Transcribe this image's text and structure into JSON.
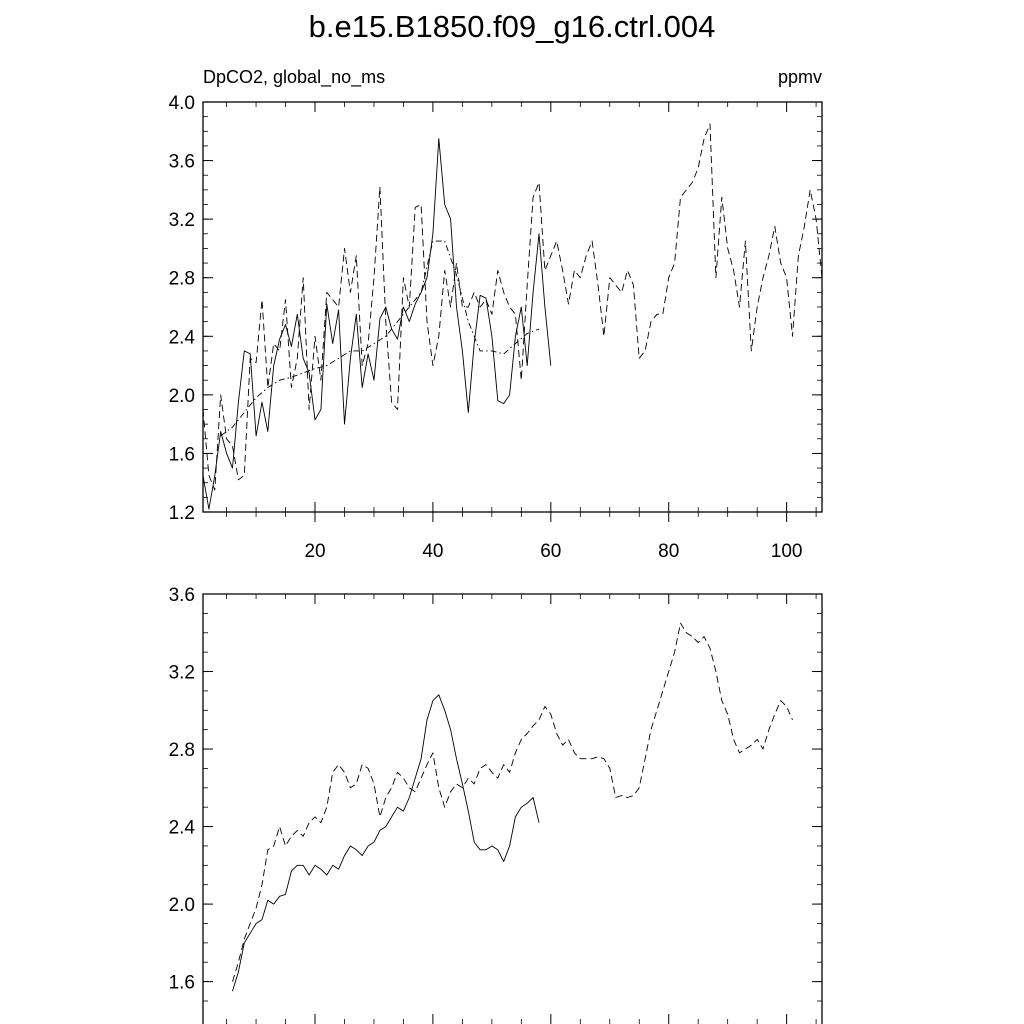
{
  "title": "b.e15.B1850.f09_g16.ctrl.004",
  "chart_data": [
    {
      "type": "line",
      "left_label": "DpCO2, global_no_ms",
      "right_label": "ppmv",
      "xlim": [
        1,
        106
      ],
      "ylim": [
        1.2,
        4.0
      ],
      "xticks": [
        20,
        40,
        60,
        80,
        100
      ],
      "yticks": [
        1.2,
        1.6,
        2.0,
        2.4,
        2.8,
        3.2,
        3.6,
        4.0
      ],
      "ytick_labels": [
        "1.2",
        "1.6",
        "2.0",
        "2.4",
        "2.8",
        "3.2",
        "3.6",
        "4.0"
      ],
      "grid": false,
      "series": [
        {
          "style": "solid",
          "color": "#000000",
          "x": [
            1,
            2,
            3,
            4,
            5,
            6,
            7,
            8,
            9,
            10,
            11,
            12,
            13,
            14,
            15,
            16,
            17,
            18,
            19,
            20,
            21,
            22,
            23,
            24,
            25,
            26,
            27,
            28,
            29,
            30,
            31,
            32,
            33,
            34,
            35,
            36,
            37,
            38,
            39,
            40,
            41,
            42,
            43,
            44,
            45,
            46,
            47,
            48,
            49,
            50,
            51,
            52,
            53,
            54,
            55,
            56,
            57,
            58,
            59,
            60
          ],
          "y": [
            1.45,
            1.22,
            1.45,
            1.75,
            1.6,
            1.5,
            1.95,
            2.3,
            2.28,
            1.72,
            1.95,
            1.75,
            2.2,
            2.38,
            2.48,
            2.33,
            2.55,
            2.25,
            2.15,
            1.83,
            1.9,
            2.62,
            2.35,
            2.58,
            1.8,
            2.25,
            2.55,
            2.05,
            2.28,
            2.1,
            2.52,
            2.6,
            2.45,
            2.38,
            2.6,
            2.5,
            2.62,
            2.7,
            2.8,
            3.1,
            3.75,
            3.3,
            3.2,
            2.6,
            2.3,
            1.88,
            2.35,
            2.68,
            2.66,
            2.4,
            1.96,
            1.94,
            2.0,
            2.4,
            2.6,
            2.2,
            2.7,
            3.1,
            2.6,
            2.2
          ]
        },
        {
          "style": "dashed",
          "color": "#000000",
          "x": [
            1,
            2,
            3,
            4,
            5,
            6,
            7,
            8,
            9,
            10,
            11,
            12,
            13,
            14,
            15,
            16,
            17,
            18,
            19,
            20,
            21,
            22,
            23,
            24,
            25,
            26,
            27,
            28,
            29,
            30,
            31,
            32,
            33,
            34,
            35,
            36,
            37,
            38,
            39,
            40,
            41,
            42,
            43,
            44,
            45,
            46,
            47,
            48,
            49,
            50,
            51,
            52,
            53,
            54,
            55,
            56,
            57,
            58,
            59,
            60,
            61,
            62,
            63,
            64,
            65,
            66,
            67,
            68,
            69,
            70,
            71,
            72,
            73,
            74,
            75,
            76,
            77,
            78,
            79,
            80,
            81,
            82,
            83,
            84,
            85,
            86,
            87,
            88,
            89,
            90,
            91,
            92,
            93,
            94,
            95,
            96,
            97,
            98,
            99,
            100,
            101,
            102,
            103,
            104,
            105,
            106
          ],
          "y": [
            1.9,
            1.45,
            1.35,
            2.0,
            1.7,
            1.65,
            1.42,
            1.45,
            2.25,
            2.22,
            2.65,
            2.05,
            2.35,
            2.3,
            2.65,
            2.05,
            2.25,
            2.8,
            1.9,
            2.4,
            2.1,
            2.7,
            2.65,
            2.6,
            3.0,
            2.7,
            2.95,
            2.2,
            2.35,
            2.8,
            3.42,
            2.5,
            1.95,
            1.9,
            2.8,
            2.6,
            3.28,
            3.3,
            2.5,
            2.2,
            2.4,
            2.85,
            2.6,
            2.9,
            2.6,
            2.6,
            2.7,
            2.6,
            2.65,
            2.55,
            2.85,
            2.7,
            2.6,
            2.55,
            2.1,
            2.75,
            3.35,
            3.45,
            2.85,
            2.95,
            3.05,
            2.85,
            2.62,
            2.85,
            2.8,
            2.95,
            3.05,
            2.75,
            2.4,
            2.8,
            2.75,
            2.7,
            2.85,
            2.75,
            2.25,
            2.3,
            2.5,
            2.55,
            2.55,
            2.8,
            2.9,
            3.35,
            3.4,
            3.45,
            3.55,
            3.75,
            3.85,
            2.8,
            3.35,
            3.0,
            2.85,
            2.6,
            3.05,
            2.3,
            2.6,
            2.8,
            2.95,
            3.15,
            2.9,
            2.8,
            2.4,
            2.95,
            3.15,
            3.4,
            3.2,
            2.8
          ]
        },
        {
          "style": "dash-dot",
          "color": "#000000",
          "x": [
            4,
            6,
            8,
            10,
            12,
            14,
            16,
            18,
            20,
            22,
            24,
            26,
            28,
            30,
            32,
            34,
            36,
            38,
            40,
            42,
            44,
            46,
            48,
            50,
            52,
            54,
            56,
            58
          ],
          "y": [
            1.72,
            1.78,
            1.88,
            1.98,
            2.05,
            2.1,
            2.12,
            2.15,
            2.18,
            2.2,
            2.25,
            2.3,
            2.3,
            2.35,
            2.4,
            2.5,
            2.6,
            2.7,
            3.05,
            3.05,
            2.82,
            2.5,
            2.3,
            2.3,
            2.28,
            2.35,
            2.42,
            2.45
          ]
        }
      ]
    },
    {
      "type": "line",
      "xlim": [
        1,
        106
      ],
      "ylim": [
        1.5,
        3.6
      ],
      "yticks": [
        1.6,
        2.0,
        2.4,
        2.8,
        3.2,
        3.6
      ],
      "ytick_labels": [
        "1.6",
        "2.0",
        "2.4",
        "2.8",
        "3.2",
        "3.6"
      ],
      "grid": false,
      "series": [
        {
          "style": "solid",
          "color": "#000000",
          "x": [
            6,
            7,
            8,
            9,
            10,
            11,
            12,
            13,
            14,
            15,
            16,
            17,
            18,
            19,
            20,
            21,
            22,
            23,
            24,
            25,
            26,
            27,
            28,
            29,
            30,
            31,
            32,
            33,
            34,
            35,
            36,
            37,
            38,
            39,
            40,
            41,
            42,
            43,
            44,
            45,
            46,
            47,
            48,
            49,
            50,
            51,
            52,
            53,
            54,
            55,
            56,
            57,
            58
          ],
          "y": [
            1.55,
            1.65,
            1.8,
            1.85,
            1.9,
            1.92,
            2.02,
            2.0,
            2.04,
            2.05,
            2.17,
            2.2,
            2.2,
            2.15,
            2.2,
            2.18,
            2.15,
            2.2,
            2.18,
            2.25,
            2.3,
            2.28,
            2.25,
            2.3,
            2.32,
            2.38,
            2.4,
            2.45,
            2.5,
            2.48,
            2.55,
            2.65,
            2.75,
            2.95,
            3.05,
            3.08,
            3.0,
            2.9,
            2.75,
            2.62,
            2.48,
            2.32,
            2.28,
            2.28,
            2.3,
            2.28,
            2.22,
            2.3,
            2.45,
            2.5,
            2.52,
            2.55,
            2.42
          ]
        },
        {
          "style": "dashed",
          "color": "#000000",
          "x": [
            6,
            7,
            8,
            9,
            10,
            11,
            12,
            13,
            14,
            15,
            16,
            17,
            18,
            19,
            20,
            21,
            22,
            23,
            24,
            25,
            26,
            27,
            28,
            29,
            30,
            31,
            32,
            33,
            34,
            35,
            36,
            37,
            38,
            39,
            40,
            41,
            42,
            43,
            44,
            45,
            46,
            47,
            48,
            49,
            50,
            51,
            52,
            53,
            54,
            55,
            56,
            57,
            58,
            59,
            60,
            61,
            62,
            63,
            64,
            65,
            66,
            67,
            68,
            69,
            70,
            71,
            72,
            73,
            74,
            75,
            76,
            77,
            78,
            79,
            80,
            81,
            82,
            83,
            84,
            85,
            86,
            87,
            88,
            89,
            90,
            91,
            92,
            93,
            94,
            95,
            96,
            97,
            98,
            99,
            100,
            101
          ],
          "y": [
            1.6,
            1.7,
            1.82,
            1.9,
            1.98,
            2.1,
            2.28,
            2.3,
            2.4,
            2.3,
            2.35,
            2.38,
            2.35,
            2.42,
            2.45,
            2.42,
            2.5,
            2.68,
            2.72,
            2.68,
            2.6,
            2.62,
            2.72,
            2.7,
            2.62,
            2.45,
            2.55,
            2.6,
            2.68,
            2.65,
            2.6,
            2.58,
            2.65,
            2.72,
            2.78,
            2.6,
            2.5,
            2.58,
            2.62,
            2.6,
            2.65,
            2.62,
            2.7,
            2.72,
            2.68,
            2.65,
            2.72,
            2.68,
            2.78,
            2.85,
            2.88,
            2.92,
            2.95,
            3.02,
            2.98,
            2.88,
            2.82,
            2.85,
            2.78,
            2.75,
            2.75,
            2.75,
            2.76,
            2.75,
            2.7,
            2.55,
            2.56,
            2.55,
            2.56,
            2.6,
            2.75,
            2.9,
            3.0,
            3.1,
            3.2,
            3.3,
            3.45,
            3.4,
            3.38,
            3.35,
            3.38,
            3.32,
            3.2,
            3.05,
            2.98,
            2.85,
            2.78,
            2.8,
            2.82,
            2.85,
            2.8,
            2.9,
            2.98,
            3.05,
            3.02,
            2.95
          ]
        }
      ]
    }
  ]
}
